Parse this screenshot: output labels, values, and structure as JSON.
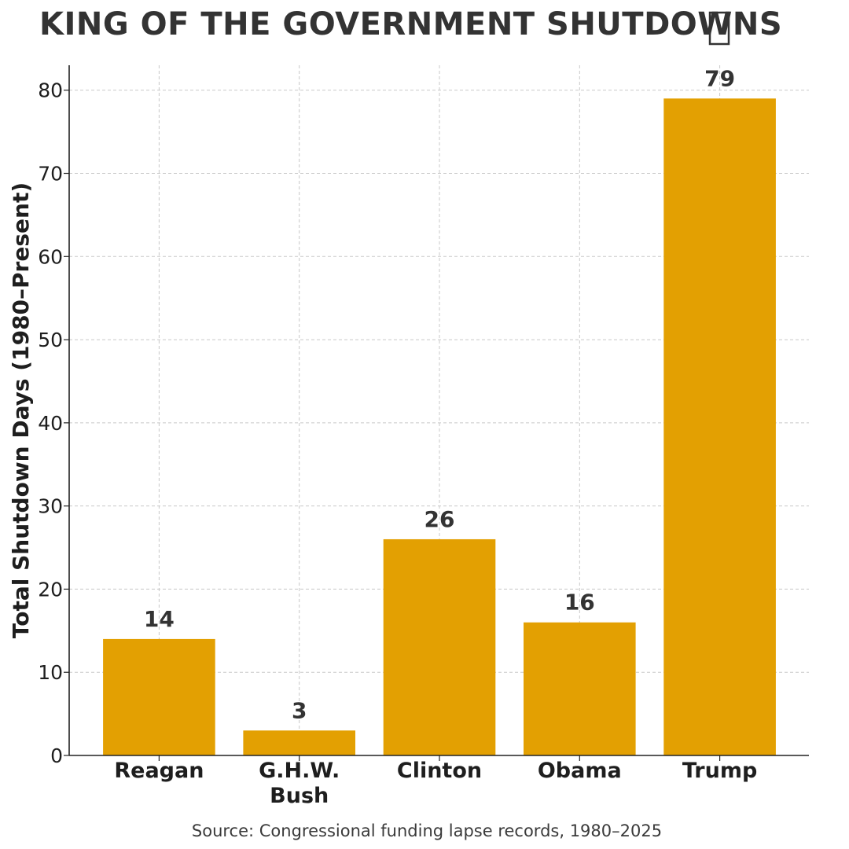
{
  "chart_data": {
    "type": "bar",
    "title": "KING OF THE GOVERNMENT SHUTDOWNS",
    "title_icon": "crown-emoji-placeholder-box-icon",
    "categories": [
      "Reagan",
      "G.H.W.\nBush",
      "Clinton",
      "Obama",
      "Trump"
    ],
    "values": [
      14,
      3,
      26,
      16,
      79
    ],
    "data_labels": [
      "14",
      "3",
      "26",
      "16",
      "79"
    ],
    "xlabel": "",
    "ylabel": "Total Shutdown Days (1980–Present)",
    "ylim": [
      0,
      83
    ],
    "yticks": [
      0,
      10,
      20,
      30,
      40,
      50,
      60,
      70,
      80
    ],
    "grid": true,
    "bar_color": "#E3A002",
    "source": "Source: Congressional funding lapse records, 1980–2025"
  }
}
